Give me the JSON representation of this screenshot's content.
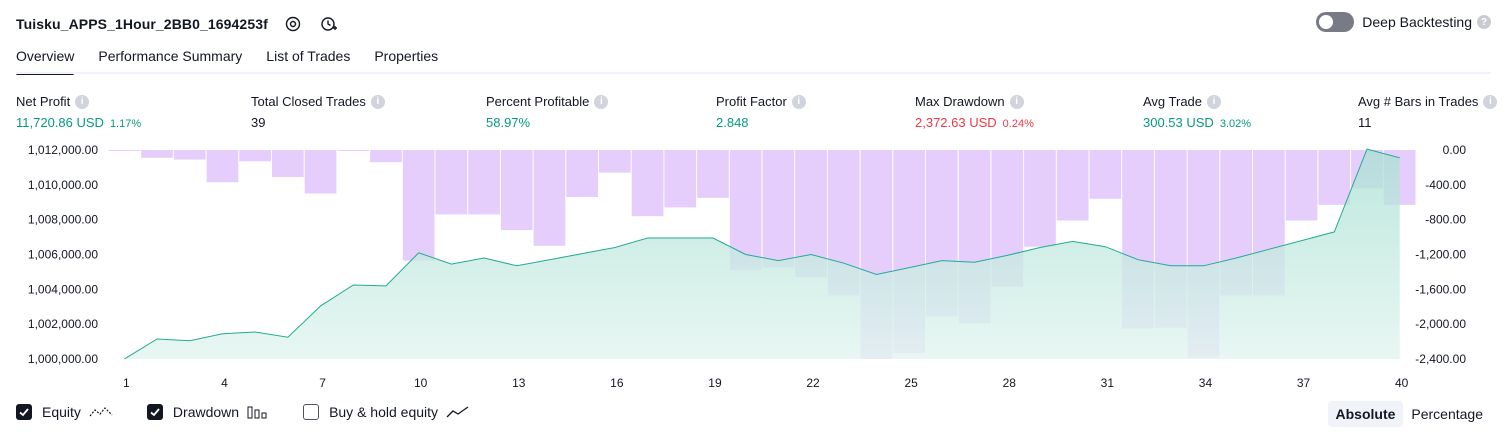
{
  "header": {
    "title": "Tuisku_APPS_1Hour_2BB0_1694253f",
    "deep_backtesting_label": "Deep Backtesting",
    "help": "?"
  },
  "tabs": [
    {
      "label": "Overview",
      "active": true
    },
    {
      "label": "Performance Summary",
      "active": false
    },
    {
      "label": "List of Trades",
      "active": false
    },
    {
      "label": "Properties",
      "active": false
    }
  ],
  "metrics": {
    "net_profit": {
      "label": "Net Profit",
      "value": "11,720.86 USD",
      "pct": "1.17%"
    },
    "total_closed_trades": {
      "label": "Total Closed Trades",
      "value": "39"
    },
    "percent_profitable": {
      "label": "Percent Profitable",
      "value": "58.97%"
    },
    "profit_factor": {
      "label": "Profit Factor",
      "value": "2.848"
    },
    "max_drawdown": {
      "label": "Max Drawdown",
      "value": "2,372.63 USD",
      "pct": "0.24%"
    },
    "avg_trade": {
      "label": "Avg Trade",
      "value": "300.53 USD",
      "pct": "3.02%"
    },
    "avg_bars": {
      "label": "Avg # Bars in Trades",
      "value": "11"
    },
    "info_glyph": "i"
  },
  "colors": {
    "green": "#089981",
    "red": "#f23645",
    "drawdown_fill": "#e1c5fb",
    "equity_line": "#22ab94",
    "equity_fill": "#d7f0ea"
  },
  "chart_data": {
    "type": "area",
    "x": [
      1,
      2,
      3,
      4,
      5,
      6,
      7,
      8,
      9,
      10,
      11,
      12,
      13,
      14,
      15,
      16,
      17,
      18,
      19,
      20,
      21,
      22,
      23,
      24,
      25,
      26,
      27,
      28,
      29,
      30,
      31,
      32,
      33,
      34,
      35,
      36,
      37,
      38,
      39,
      40
    ],
    "x_ticks": [
      "1",
      "4",
      "7",
      "10",
      "13",
      "16",
      "19",
      "22",
      "25",
      "28",
      "31",
      "34",
      "37",
      "40"
    ],
    "left_axis": {
      "ticks": [
        "1,012,000.00",
        "1,010,000.00",
        "1,008,000.00",
        "1,006,000.00",
        "1,004,000.00",
        "1,002,000.00",
        "1,000,000.00"
      ],
      "ylim": [
        1000000,
        1012000
      ]
    },
    "right_axis": {
      "ticks": [
        "0.00",
        "-400.00",
        "-800.00",
        "-1,200.00",
        "-1,600.00",
        "-2,000.00",
        "-2,400.00"
      ],
      "ylim": [
        -2400,
        0
      ]
    },
    "series": [
      {
        "name": "Equity",
        "axis": "left",
        "values": [
          1000000,
          1001150,
          1001050,
          1001450,
          1001550,
          1001250,
          1003050,
          1004250,
          1004200,
          1006100,
          1005450,
          1005800,
          1005350,
          1005700,
          1006050,
          1006400,
          1006950,
          1006950,
          1006950,
          1006000,
          1005650,
          1006000,
          1005500,
          1004850,
          1005250,
          1005650,
          1005550,
          1005950,
          1006400,
          1006750,
          1006450,
          1005700,
          1005350,
          1005350,
          1005800,
          1006300,
          1006800,
          1007300,
          1012050,
          1011550
        ]
      },
      {
        "name": "Drawdown",
        "axis": "right",
        "values": [
          -10,
          -90,
          -110,
          -370,
          -130,
          -310,
          -500,
          -10,
          -140,
          -1270,
          -740,
          -740,
          -920,
          -1100,
          -540,
          -260,
          -760,
          -660,
          -550,
          -1380,
          -1350,
          -1460,
          -1670,
          -2400,
          -2330,
          -1910,
          -1990,
          -1570,
          -1110,
          -810,
          -560,
          -2050,
          -2040,
          -2390,
          -1670,
          -1670,
          -810,
          -630,
          -440,
          -630
        ]
      }
    ]
  },
  "legend": {
    "equity": {
      "label": "Equity",
      "checked": true
    },
    "drawdown": {
      "label": "Drawdown",
      "checked": true
    },
    "buy_hold": {
      "label": "Buy & hold equity",
      "checked": false
    }
  },
  "view_mode": {
    "absolute": "Absolute",
    "percentage": "Percentage",
    "selected": "Absolute"
  }
}
